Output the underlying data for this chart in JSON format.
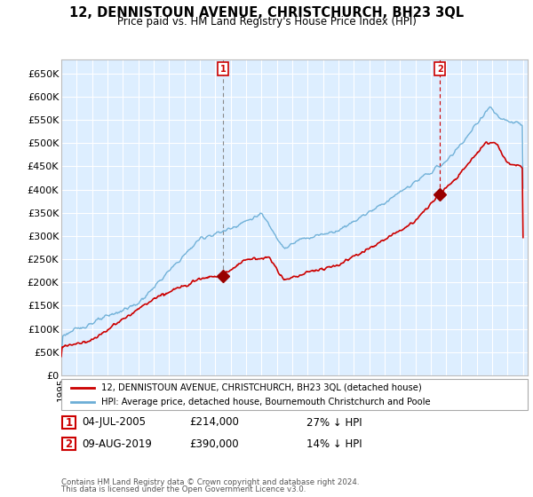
{
  "title": "12, DENNISTOUN AVENUE, CHRISTCHURCH, BH23 3QL",
  "subtitle": "Price paid vs. HM Land Registry's House Price Index (HPI)",
  "ylabel_ticks": [
    "£0",
    "£50K",
    "£100K",
    "£150K",
    "£200K",
    "£250K",
    "£300K",
    "£350K",
    "£400K",
    "£450K",
    "£500K",
    "£550K",
    "£600K",
    "£650K"
  ],
  "ytick_vals": [
    0,
    50000,
    100000,
    150000,
    200000,
    250000,
    300000,
    350000,
    400000,
    450000,
    500000,
    550000,
    600000,
    650000
  ],
  "ylim": [
    0,
    680000
  ],
  "xlim_left": 1995,
  "xlim_right": 2025.3,
  "legend_line1": "12, DENNISTOUN AVENUE, CHRISTCHURCH, BH23 3QL (detached house)",
  "legend_line2": "HPI: Average price, detached house, Bournemouth Christchurch and Poole",
  "sale1_label": "1",
  "sale1_date": "04-JUL-2005",
  "sale1_price": "£214,000",
  "sale1_hpi": "27% ↓ HPI",
  "sale2_label": "2",
  "sale2_date": "09-AUG-2019",
  "sale2_price": "£390,000",
  "sale2_hpi": "14% ↓ HPI",
  "footnote1": "Contains HM Land Registry data © Crown copyright and database right 2024.",
  "footnote2": "This data is licensed under the Open Government Licence v3.0.",
  "hpi_color": "#6baed6",
  "price_color": "#cc0000",
  "marker_color": "#990000",
  "background_color": "#ddeeff",
  "grid_color": "#ffffff",
  "sale1_x": 2005.5,
  "sale1_y": 214000,
  "sale2_x": 2019.6,
  "sale2_y": 390000,
  "sale_box_color": "#cc0000"
}
